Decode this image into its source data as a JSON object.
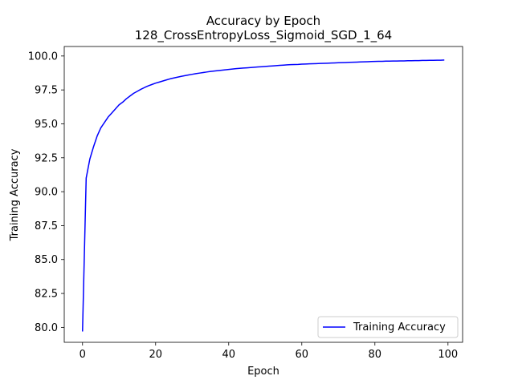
{
  "chart_data": {
    "type": "line",
    "title": "Accuracy by Epoch",
    "subtitle": "128_CrossEntropyLoss_Sigmoid_SGD_1_64",
    "xlabel": "Epoch",
    "ylabel": "Training Accuracy",
    "xlim": [
      -5,
      104
    ],
    "ylim": [
      78.9,
      100.7
    ],
    "xticks": [
      0,
      20,
      40,
      60,
      80,
      100
    ],
    "yticks": [
      80.0,
      82.5,
      85.0,
      87.5,
      90.0,
      92.5,
      95.0,
      97.5,
      100.0
    ],
    "xtick_labels": [
      "0",
      "20",
      "40",
      "60",
      "80",
      "100"
    ],
    "ytick_labels": [
      "80.0",
      "82.5",
      "85.0",
      "87.5",
      "90.0",
      "92.5",
      "95.0",
      "97.5",
      "100.0"
    ],
    "grid": false,
    "legend_position": "lower-right",
    "series": [
      {
        "name": "Training Accuracy",
        "color": "#0000ff",
        "x": [
          0,
          1,
          2,
          3,
          4,
          5,
          6,
          7,
          8,
          9,
          10,
          11,
          12,
          13,
          14,
          15,
          16,
          17,
          18,
          19,
          20,
          21,
          22,
          23,
          24,
          25,
          26,
          27,
          28,
          29,
          30,
          31,
          32,
          33,
          34,
          35,
          36,
          37,
          38,
          39,
          40,
          41,
          42,
          43,
          44,
          45,
          46,
          47,
          48,
          49,
          50,
          51,
          52,
          53,
          54,
          55,
          56,
          57,
          58,
          59,
          60,
          61,
          62,
          63,
          64,
          65,
          66,
          67,
          68,
          69,
          70,
          71,
          72,
          73,
          74,
          75,
          76,
          77,
          78,
          79,
          80,
          81,
          82,
          83,
          84,
          85,
          86,
          87,
          88,
          89,
          90,
          91,
          92,
          93,
          94,
          95,
          96,
          97,
          98,
          99
        ],
        "y": [
          79.7,
          91.0,
          92.4,
          93.3,
          94.1,
          94.7,
          95.1,
          95.5,
          95.8,
          96.1,
          96.4,
          96.6,
          96.85,
          97.05,
          97.25,
          97.4,
          97.55,
          97.68,
          97.8,
          97.9,
          98.0,
          98.08,
          98.16,
          98.24,
          98.32,
          98.38,
          98.44,
          98.5,
          98.55,
          98.6,
          98.65,
          98.7,
          98.74,
          98.78,
          98.82,
          98.86,
          98.89,
          98.92,
          98.95,
          98.98,
          99.01,
          99.04,
          99.07,
          99.09,
          99.11,
          99.13,
          99.15,
          99.17,
          99.19,
          99.21,
          99.23,
          99.25,
          99.27,
          99.29,
          99.31,
          99.33,
          99.35,
          99.36,
          99.37,
          99.38,
          99.4,
          99.41,
          99.42,
          99.43,
          99.44,
          99.45,
          99.46,
          99.47,
          99.48,
          99.49,
          99.5,
          99.51,
          99.52,
          99.53,
          99.54,
          99.55,
          99.56,
          99.57,
          99.58,
          99.59,
          99.6,
          99.61,
          99.61,
          99.62,
          99.62,
          99.63,
          99.63,
          99.64,
          99.64,
          99.65,
          99.65,
          99.66,
          99.66,
          99.67,
          99.67,
          99.68,
          99.68,
          99.69,
          99.69,
          99.7
        ]
      }
    ]
  }
}
